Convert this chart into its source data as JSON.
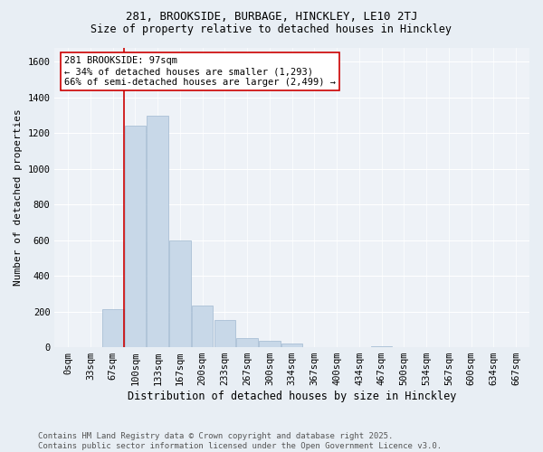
{
  "title1": "281, BROOKSIDE, BURBAGE, HINCKLEY, LE10 2TJ",
  "title2": "Size of property relative to detached houses in Hinckley",
  "xlabel": "Distribution of detached houses by size in Hinckley",
  "ylabel": "Number of detached properties",
  "bar_labels": [
    "0sqm",
    "33sqm",
    "67sqm",
    "100sqm",
    "133sqm",
    "167sqm",
    "200sqm",
    "233sqm",
    "267sqm",
    "300sqm",
    "334sqm",
    "367sqm",
    "400sqm",
    "434sqm",
    "467sqm",
    "500sqm",
    "534sqm",
    "567sqm",
    "600sqm",
    "634sqm",
    "667sqm"
  ],
  "bar_values": [
    0,
    0,
    215,
    1240,
    1300,
    600,
    235,
    150,
    50,
    35,
    20,
    0,
    0,
    0,
    5,
    0,
    0,
    0,
    0,
    0,
    0
  ],
  "bar_color": "#c8d8e8",
  "bar_edgecolor": "#a0b8d0",
  "vline_x": 2.5,
  "vline_color": "#cc0000",
  "annotation_text": "281 BROOKSIDE: 97sqm\n← 34% of detached houses are smaller (1,293)\n66% of semi-detached houses are larger (2,499) →",
  "annotation_box_edgecolor": "#cc0000",
  "annotation_box_facecolor": "#ffffff",
  "ylim": [
    0,
    1680
  ],
  "yticks": [
    0,
    200,
    400,
    600,
    800,
    1000,
    1200,
    1400,
    1600
  ],
  "bg_color": "#e8eef4",
  "plot_bg_color": "#eef2f7",
  "footer_text": "Contains HM Land Registry data © Crown copyright and database right 2025.\nContains public sector information licensed under the Open Government Licence v3.0.",
  "title1_fontsize": 9,
  "title2_fontsize": 8.5,
  "xlabel_fontsize": 8.5,
  "ylabel_fontsize": 8,
  "annotation_fontsize": 7.5,
  "footer_fontsize": 6.5,
  "tick_fontsize": 7.5
}
